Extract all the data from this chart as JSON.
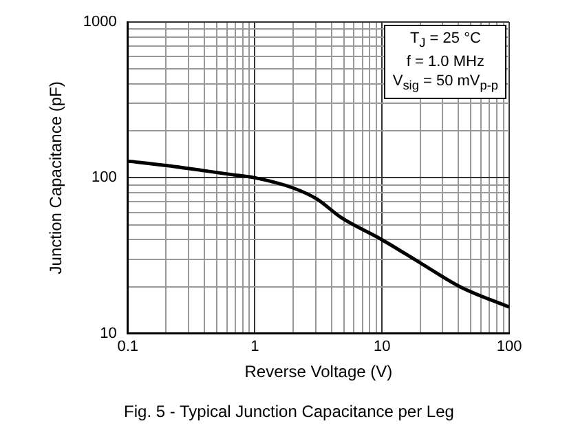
{
  "chart_data": {
    "type": "line",
    "xlabel": "Reverse Voltage (V)",
    "ylabel": "Junction Capacitance (pF)",
    "x": [
      0.1,
      0.2,
      0.4,
      0.65,
      1,
      2,
      3.08,
      4.7,
      10,
      20.6,
      41,
      100
    ],
    "series": [
      {
        "color": "#000000",
        "values": [
          128,
          120,
          111,
          105,
          100,
          86,
          73,
          56,
          40,
          28,
          20,
          14.8
        ]
      }
    ],
    "log": "xy",
    "grid": true,
    "legend": false,
    "marker": "none",
    "line_style": "solid",
    "xlim": [
      0.1,
      100
    ],
    "ylim": [
      10,
      1000
    ],
    "xticks": [
      0.1,
      {
        "value": 0.2,
        "label": null
      },
      {
        "value": 0.3,
        "label": null
      },
      {
        "value": 0.4,
        "label": null
      },
      {
        "value": 0.5,
        "label": null
      },
      {
        "value": 0.6,
        "label": null
      },
      {
        "value": 0.7,
        "label": null
      },
      {
        "value": 0.8,
        "label": null
      },
      {
        "value": 0.9,
        "label": null
      },
      1,
      {
        "value": 2,
        "label": null
      },
      {
        "value": 3,
        "label": null
      },
      {
        "value": 4,
        "label": null
      },
      {
        "value": 5,
        "label": null
      },
      {
        "value": 6,
        "label": null
      },
      {
        "value": 7,
        "label": null
      },
      {
        "value": 8,
        "label": null
      },
      {
        "value": 9,
        "label": null
      },
      10,
      {
        "value": 20,
        "label": null
      },
      {
        "value": 30,
        "label": null
      },
      {
        "value": 40,
        "label": null
      },
      {
        "value": 50,
        "label": null
      },
      {
        "value": 60,
        "label": null
      },
      {
        "value": 70,
        "label": null
      },
      {
        "value": 80,
        "label": null
      },
      {
        "value": 90,
        "label": null
      },
      100
    ],
    "yticks": [
      10,
      {
        "value": 20,
        "label": null
      },
      {
        "value": 30,
        "label": null
      },
      {
        "value": 40,
        "label": null
      },
      {
        "value": 50,
        "label": null
      },
      {
        "value": 60,
        "label": null
      },
      {
        "value": 70,
        "label": null
      },
      {
        "value": 80,
        "label": null
      },
      {
        "value": 90,
        "label": null
      },
      100,
      {
        "value": 200,
        "label": null
      },
      {
        "value": 300,
        "label": null
      },
      {
        "value": 400,
        "label": null
      },
      {
        "value": 500,
        "label": null
      },
      {
        "value": 600,
        "label": null
      },
      {
        "value": 700,
        "label": null
      },
      {
        "value": 800,
        "label": null
      },
      {
        "value": 900,
        "label": null
      },
      1000
    ],
    "annotations": [
      "T$_{J}$ = 25 °C",
      "f = 1.0 MHz",
      "V$_{sig}$ = 50 mV$_{p-p}$",
      "Fig. 5 - Typical Junction Capacitance per Leg"
    ]
  }
}
